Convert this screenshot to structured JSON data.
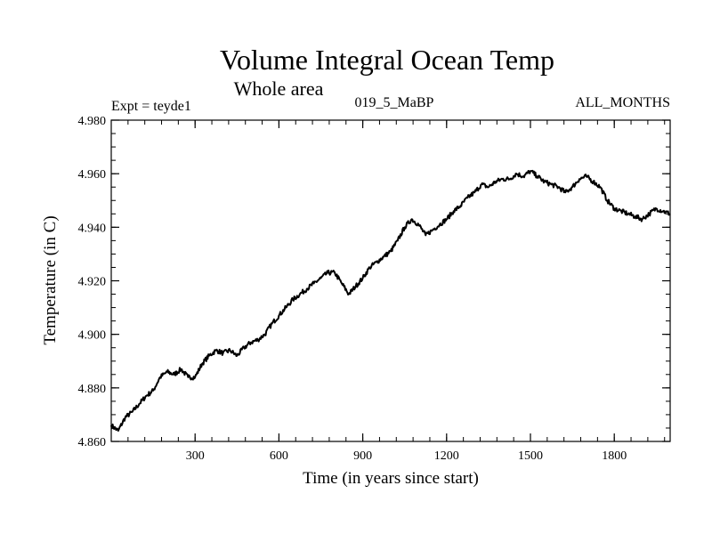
{
  "chart_data": {
    "type": "line",
    "title": "Volume Integral Ocean Temp",
    "subtitle": "Whole area",
    "header_left": "Expt = teyde1",
    "header_center": "019_5_MaBP",
    "header_right": "ALL_MONTHS",
    "xlabel": "Time (in years since start)",
    "ylabel": "Temperature (in C)",
    "xlim": [
      0,
      2000
    ],
    "ylim": [
      4.86,
      4.98
    ],
    "x_ticks": [
      300,
      600,
      900,
      1200,
      1500,
      1800
    ],
    "x_tick_labels": [
      "300",
      "600",
      "900",
      "1200",
      "1500",
      "1800"
    ],
    "y_ticks": [
      4.86,
      4.88,
      4.9,
      4.92,
      4.94,
      4.96,
      4.98
    ],
    "y_tick_labels": [
      "4.860",
      "4.880",
      "4.900",
      "4.920",
      "4.940",
      "4.960",
      "4.980"
    ],
    "series": [
      {
        "name": "Volume integral ocean temperature",
        "x": [
          0,
          25,
          50,
          75,
          100,
          125,
          150,
          175,
          200,
          225,
          250,
          275,
          300,
          325,
          350,
          375,
          400,
          425,
          450,
          475,
          500,
          525,
          550,
          575,
          600,
          625,
          650,
          675,
          700,
          725,
          750,
          775,
          800,
          825,
          850,
          875,
          900,
          925,
          950,
          975,
          1000,
          1025,
          1050,
          1075,
          1100,
          1125,
          1150,
          1175,
          1200,
          1225,
          1250,
          1275,
          1300,
          1325,
          1350,
          1375,
          1400,
          1425,
          1450,
          1475,
          1500,
          1525,
          1550,
          1575,
          1600,
          1625,
          1650,
          1675,
          1700,
          1725,
          1750,
          1775,
          1800,
          1825,
          1850,
          1875,
          1900,
          1925,
          1950,
          1975,
          2000
        ],
        "values": [
          4.866,
          4.864,
          4.869,
          4.871,
          4.874,
          4.877,
          4.879,
          4.884,
          4.886,
          4.885,
          4.887,
          4.884,
          4.884,
          4.889,
          4.892,
          4.894,
          4.893,
          4.894,
          4.892,
          4.895,
          4.897,
          4.898,
          4.9,
          4.904,
          4.907,
          4.91,
          4.913,
          4.915,
          4.917,
          4.919,
          4.921,
          4.923,
          4.923,
          4.919,
          4.915,
          4.918,
          4.921,
          4.925,
          4.927,
          4.929,
          4.931,
          4.935,
          4.94,
          4.943,
          4.941,
          4.937,
          4.939,
          4.941,
          4.943,
          4.946,
          4.948,
          4.951,
          4.953,
          4.956,
          4.955,
          4.957,
          4.958,
          4.958,
          4.96,
          4.959,
          4.961,
          4.959,
          4.957,
          4.956,
          4.955,
          4.953,
          4.955,
          4.958,
          4.959,
          4.957,
          4.955,
          4.95,
          4.947,
          4.946,
          4.945,
          4.944,
          4.943,
          4.945,
          4.947,
          4.946,
          4.945
        ]
      }
    ]
  }
}
